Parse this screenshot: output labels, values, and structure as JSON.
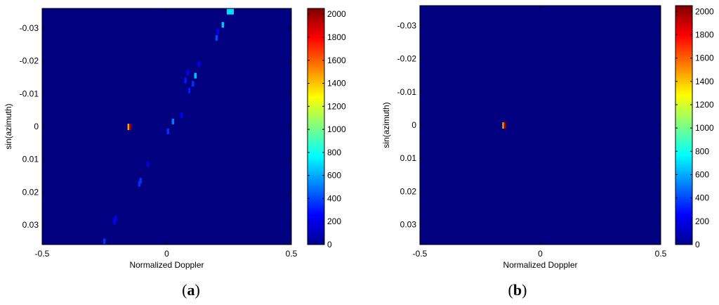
{
  "chart_data": [
    {
      "type": "heatmap",
      "panel_label": "a",
      "xlabel": "Normalized Doppler",
      "ylabel": "sin(azimuth)",
      "xlim": [
        -0.5,
        0.5
      ],
      "ylim": [
        -0.036,
        0.036
      ],
      "y_reversed": true,
      "x_ticks": [
        "-0.5",
        "0",
        "0.5"
      ],
      "x_tick_values": [
        -0.5,
        0,
        0.5
      ],
      "y_ticks": [
        "-0.03",
        "-0.02",
        "-0.01",
        "0",
        "0.01",
        "0.02",
        "0.03"
      ],
      "y_tick_values": [
        -0.03,
        -0.02,
        -0.01,
        0,
        0.01,
        0.02,
        0.03
      ],
      "background_value": 0,
      "colorbar": {
        "min": 0,
        "max": 2050,
        "ticks": [
          "0",
          "200",
          "400",
          "600",
          "800",
          "1000",
          "1200",
          "1400",
          "1600",
          "1800",
          "2000"
        ],
        "tick_values": [
          0,
          200,
          400,
          600,
          800,
          1000,
          1200,
          1400,
          1600,
          1800,
          2000
        ]
      },
      "cells": [
        {
          "x": -0.15,
          "y": 0.0,
          "value": 2050,
          "note": "peak"
        },
        {
          "x": -0.25,
          "y": 0.035,
          "value": 350
        },
        {
          "x": -0.205,
          "y": 0.028,
          "value": 250
        },
        {
          "x": -0.21,
          "y": 0.029,
          "value": 250
        },
        {
          "x": -0.11,
          "y": 0.0175,
          "value": 350
        },
        {
          "x": -0.105,
          "y": 0.0165,
          "value": 350
        },
        {
          "x": -0.075,
          "y": 0.0115,
          "value": 200
        },
        {
          "x": 0.005,
          "y": 0.0015,
          "value": 350
        },
        {
          "x": 0.025,
          "y": -0.0015,
          "value": 500
        },
        {
          "x": 0.06,
          "y": -0.0035,
          "value": 250
        },
        {
          "x": 0.09,
          "y": -0.011,
          "value": 300
        },
        {
          "x": 0.105,
          "y": -0.013,
          "value": 350
        },
        {
          "x": 0.075,
          "y": -0.014,
          "value": 300
        },
        {
          "x": 0.085,
          "y": -0.0165,
          "value": 250
        },
        {
          "x": 0.115,
          "y": -0.0155,
          "value": 650
        },
        {
          "x": 0.13,
          "y": -0.019,
          "value": 250
        },
        {
          "x": 0.2,
          "y": -0.027,
          "value": 400
        },
        {
          "x": 0.205,
          "y": -0.029,
          "value": 250
        },
        {
          "x": 0.225,
          "y": -0.031,
          "value": 650
        },
        {
          "x": 0.255,
          "y": -0.035,
          "value": 700
        }
      ]
    },
    {
      "type": "heatmap",
      "panel_label": "b",
      "xlabel": "Normalized Doppler",
      "ylabel": "sin(azimuth)",
      "xlim": [
        -0.5,
        0.5
      ],
      "ylim": [
        -0.036,
        0.036
      ],
      "y_reversed": true,
      "x_ticks": [
        "-0.5",
        "0",
        "0.5"
      ],
      "x_tick_values": [
        -0.5,
        0,
        0.5
      ],
      "y_ticks": [
        "-0.03",
        "-0.02",
        "-0.01",
        "0",
        "0.01",
        "0.02",
        "0.03"
      ],
      "y_tick_values": [
        -0.03,
        -0.02,
        -0.01,
        0,
        0.01,
        0.02,
        0.03
      ],
      "background_value": 0,
      "colorbar": {
        "min": 0,
        "max": 2050,
        "ticks": [
          "0",
          "200",
          "400",
          "600",
          "800",
          "1000",
          "1200",
          "1400",
          "1600",
          "1800",
          "2000"
        ],
        "tick_values": [
          0,
          200,
          400,
          600,
          800,
          1000,
          1200,
          1400,
          1600,
          1800,
          2000
        ]
      },
      "cells": [
        {
          "x": -0.15,
          "y": 0.0,
          "value": 2050,
          "note": "peak"
        }
      ]
    }
  ]
}
